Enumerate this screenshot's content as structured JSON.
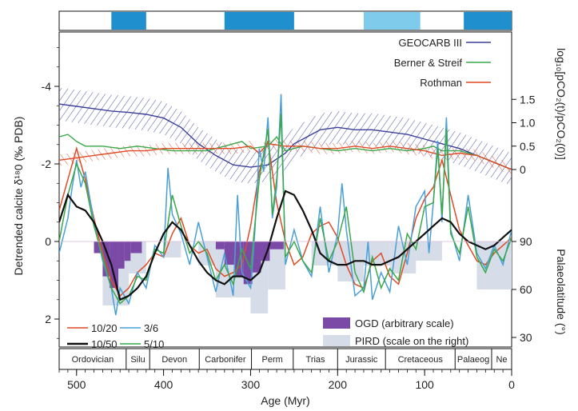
{
  "chart_data": {
    "type": "line",
    "x": {
      "label": "Age (Myr)",
      "range": [
        520,
        0
      ],
      "ticks": [
        500,
        400,
        300,
        200,
        100,
        0
      ]
    },
    "y_left": {
      "label": "Detrended calcite δ¹⁸0 (‰ PDB)",
      "range": [
        3,
        -5.5
      ],
      "ticks": [
        2,
        0,
        -2,
        -4
      ],
      "inverted": true
    },
    "y_right_top": {
      "label": "log₁₀[pCO₂(t)/pCO₂(0)]",
      "ticks": [
        1.5,
        1.0,
        0.5,
        0
      ]
    },
    "y_right_bottom": {
      "label": "Palaeolatitude (°)",
      "ticks": [
        90,
        60,
        30
      ]
    },
    "icehouse_bar": [
      {
        "start": 460,
        "end": 420,
        "color": "#1f8fce"
      },
      {
        "start": 330,
        "end": 250,
        "color": "#1f8fce"
      },
      {
        "start": 170,
        "end": 105,
        "color": "#7fcbeb"
      },
      {
        "start": 55,
        "end": 0,
        "color": "#1f8fce"
      }
    ],
    "periods": [
      {
        "name": "Ordovician",
        "start": 520,
        "end": 443
      },
      {
        "name": "Silu",
        "start": 443,
        "end": 416
      },
      {
        "name": "Devon",
        "start": 416,
        "end": 359
      },
      {
        "name": "Carbonifer",
        "start": 359,
        "end": 299
      },
      {
        "name": "Perm",
        "start": 299,
        "end": 251
      },
      {
        "name": "Trias",
        "start": 251,
        "end": 200
      },
      {
        "name": "Jurassic",
        "start": 200,
        "end": 145
      },
      {
        "name": "Cretaceous",
        "start": 145,
        "end": 65
      },
      {
        "name": "Palaeog",
        "start": 65,
        "end": 23
      },
      {
        "name": "Ne",
        "start": 23,
        "end": 0
      }
    ],
    "co2_series": [
      {
        "name": "GEOCARB III",
        "color": "#3b3f9a",
        "x": [
          520,
          500,
          480,
          460,
          440,
          420,
          400,
          380,
          360,
          340,
          320,
          300,
          280,
          260,
          250,
          240,
          230,
          220,
          200,
          180,
          160,
          140,
          120,
          100,
          80,
          60,
          40,
          20,
          0
        ],
        "y": [
          1.4,
          1.35,
          1.3,
          1.25,
          1.22,
          1.18,
          1.1,
          0.9,
          0.55,
          0.3,
          0.1,
          0.05,
          0.1,
          0.35,
          0.55,
          0.65,
          0.75,
          0.85,
          0.9,
          0.85,
          0.85,
          0.8,
          0.75,
          0.65,
          0.55,
          0.45,
          0.3,
          0.15,
          0
        ]
      },
      {
        "name": "Berner & Streif",
        "color": "#3aa84a",
        "x": [
          520,
          510,
          500,
          490,
          470,
          450,
          430,
          410,
          390,
          370,
          350,
          330,
          310,
          300,
          280,
          270,
          260,
          250,
          240,
          220,
          200,
          180,
          160,
          140,
          120,
          100,
          90,
          80,
          60,
          40,
          20,
          0
        ],
        "y": [
          0.7,
          0.75,
          0.6,
          0.5,
          0.5,
          0.45,
          0.5,
          0.45,
          0.4,
          0.4,
          0.4,
          0.5,
          0.6,
          0.45,
          0.5,
          0.7,
          0.4,
          0.45,
          0.5,
          0.45,
          0.4,
          0.45,
          0.4,
          0.45,
          0.4,
          0.45,
          0.5,
          0.4,
          0.4,
          0.3,
          0.15,
          0
        ]
      },
      {
        "name": "Rothman",
        "color": "#e04a24",
        "x": [
          520,
          500,
          480,
          460,
          440,
          420,
          400,
          380,
          360,
          340,
          320,
          300,
          290,
          280,
          260,
          240,
          220,
          200,
          180,
          160,
          140,
          120,
          100,
          80,
          60,
          40,
          20,
          0
        ],
        "y": [
          0.2,
          0.25,
          0.3,
          0.35,
          0.4,
          0.4,
          0.45,
          0.45,
          0.45,
          0.45,
          0.45,
          0.5,
          0.35,
          0.55,
          0.5,
          0.5,
          0.45,
          0.45,
          0.5,
          0.45,
          0.5,
          0.45,
          0.4,
          0.3,
          0.35,
          0.3,
          0.15,
          0
        ]
      }
    ],
    "d18o_series": [
      {
        "name": "10/20",
        "color": "#e04a24",
        "x": [
          520,
          510,
          500,
          490,
          480,
          470,
          460,
          450,
          440,
          430,
          420,
          410,
          400,
          390,
          380,
          370,
          360,
          350,
          340,
          330,
          320,
          310,
          300,
          290,
          280,
          270,
          260,
          250,
          240,
          230,
          220,
          210,
          200,
          190,
          180,
          170,
          160,
          150,
          140,
          130,
          120,
          110,
          100,
          90,
          80,
          70,
          60,
          50,
          40,
          30,
          20,
          10,
          0
        ],
        "y": [
          -0.8,
          -1.6,
          -2.4,
          -1.6,
          -0.6,
          0.3,
          1.0,
          1.4,
          1.2,
          0.8,
          0.6,
          0.3,
          0.4,
          -0.2,
          -0.6,
          0.1,
          0.3,
          0.2,
          0.7,
          0.9,
          0.8,
          0.6,
          -0.4,
          -1.8,
          -2.6,
          -1.0,
          0.0,
          0.6,
          0.4,
          -0.2,
          -0.4,
          -0.5,
          -0.1,
          0.6,
          1.1,
          1.2,
          0.5,
          0.3,
          0.9,
          1.1,
          0.3,
          -0.6,
          -1.1,
          -1.4,
          -2.1,
          -1.2,
          -0.3,
          0.1,
          0.5,
          0.6,
          0.3,
          0.1,
          -0.1
        ]
      },
      {
        "name": "3/6",
        "color": "#4a9fd6",
        "x": [
          520,
          510,
          505,
          500,
          495,
          490,
          480,
          470,
          460,
          455,
          450,
          440,
          430,
          420,
          410,
          400,
          395,
          390,
          380,
          370,
          360,
          350,
          340,
          330,
          320,
          315,
          310,
          300,
          295,
          290,
          285,
          280,
          275,
          270,
          265,
          260,
          250,
          240,
          230,
          220,
          210,
          200,
          195,
          190,
          180,
          170,
          165,
          160,
          150,
          140,
          130,
          120,
          110,
          100,
          95,
          90,
          85,
          80,
          75,
          70,
          60,
          50,
          40,
          30,
          20,
          10,
          0
        ],
        "y": [
          0.3,
          -0.6,
          -1.4,
          -2.1,
          -1.4,
          -1.8,
          -0.5,
          0.5,
          1.2,
          1.9,
          1.2,
          1.6,
          0.8,
          1.2,
          0.1,
          0.4,
          -1.9,
          -0.7,
          -0.2,
          0.6,
          -0.5,
          0.4,
          1.3,
          0.3,
          1.4,
          -1.2,
          0.8,
          1.2,
          -0.3,
          -2.4,
          -1.8,
          -3.2,
          -0.6,
          -1.4,
          -3.8,
          0.6,
          -0.3,
          0.5,
          0.9,
          -0.9,
          0.8,
          -0.2,
          -1.5,
          -0.3,
          1.4,
          1.2,
          0.0,
          1.5,
          0.8,
          1.3,
          -0.4,
          0.6,
          -0.9,
          -1.3,
          0.3,
          -1.0,
          -2.6,
          -0.5,
          -3.2,
          -0.3,
          0.5,
          -1.2,
          0.3,
          0.7,
          0.1,
          0.6,
          -0.3
        ]
      },
      {
        "name": "5/10",
        "color": "#3aa84a",
        "x": [
          520,
          510,
          500,
          490,
          480,
          470,
          460,
          450,
          440,
          430,
          420,
          410,
          400,
          390,
          380,
          370,
          360,
          350,
          340,
          330,
          320,
          310,
          300,
          290,
          280,
          275,
          270,
          265,
          260,
          250,
          240,
          230,
          220,
          210,
          200,
          190,
          180,
          170,
          160,
          150,
          140,
          130,
          120,
          110,
          100,
          90,
          85,
          80,
          75,
          70,
          60,
          50,
          40,
          30,
          20,
          10,
          0
        ],
        "y": [
          0.0,
          -1.2,
          -2.0,
          -1.5,
          -0.4,
          0.4,
          1.2,
          1.6,
          1.4,
          0.9,
          1.0,
          0.2,
          0.3,
          -1.2,
          -0.4,
          0.3,
          0.0,
          0.3,
          1.0,
          0.6,
          1.1,
          0.2,
          0.7,
          -1.6,
          -2.9,
          -0.7,
          -1.6,
          -3.3,
          0.4,
          0.0,
          0.5,
          0.8,
          -0.6,
          0.5,
          0.0,
          -0.9,
          0.8,
          1.3,
          0.4,
          1.2,
          0.7,
          1.0,
          -0.2,
          0.2,
          -0.9,
          -1.0,
          -2.4,
          -0.7,
          -2.9,
          -0.2,
          0.3,
          -0.9,
          0.4,
          0.8,
          0.2,
          0.5,
          -0.1
        ]
      },
      {
        "name": "10/50",
        "color": "#111111",
        "x": [
          520,
          510,
          500,
          490,
          480,
          470,
          460,
          450,
          440,
          430,
          420,
          410,
          400,
          390,
          380,
          370,
          360,
          350,
          340,
          330,
          320,
          310,
          300,
          290,
          280,
          270,
          260,
          250,
          240,
          230,
          220,
          210,
          200,
          190,
          180,
          170,
          160,
          150,
          140,
          130,
          120,
          110,
          100,
          90,
          80,
          70,
          60,
          50,
          40,
          30,
          20,
          10,
          0
        ],
        "y": [
          -0.5,
          -1.2,
          -0.9,
          -0.8,
          -0.5,
          0.0,
          0.6,
          1.5,
          1.4,
          1.2,
          0.9,
          0.3,
          -0.2,
          -0.5,
          -0.3,
          0.1,
          0.5,
          0.8,
          1.0,
          1.1,
          0.9,
          0.9,
          1.0,
          0.8,
          0.2,
          -0.6,
          -1.3,
          -1.2,
          -0.8,
          -0.3,
          0.3,
          0.5,
          0.6,
          0.6,
          0.5,
          0.5,
          0.6,
          0.6,
          0.5,
          0.4,
          0.2,
          0.0,
          -0.2,
          -0.4,
          -0.6,
          -0.5,
          -0.2,
          0.0,
          0.1,
          0.2,
          0.1,
          -0.1,
          -0.3
        ]
      }
    ],
    "ogd_blocks": [
      {
        "x0": 480,
        "x1": 470,
        "depth": 0.3
      },
      {
        "x0": 470,
        "x1": 462,
        "depth": 0.9
      },
      {
        "x0": 462,
        "x1": 452,
        "depth": 1.2
      },
      {
        "x0": 452,
        "x1": 445,
        "depth": 0.7
      },
      {
        "x0": 445,
        "x1": 438,
        "depth": 0.5
      },
      {
        "x0": 438,
        "x1": 425,
        "depth": 0.3
      },
      {
        "x0": 340,
        "x1": 330,
        "depth": 0.2
      },
      {
        "x0": 330,
        "x1": 318,
        "depth": 0.6
      },
      {
        "x0": 318,
        "x1": 308,
        "depth": 0.9
      },
      {
        "x0": 308,
        "x1": 298,
        "depth": 1.1
      },
      {
        "x0": 298,
        "x1": 288,
        "depth": 0.8
      },
      {
        "x0": 288,
        "x1": 278,
        "depth": 0.5
      },
      {
        "x0": 278,
        "x1": 262,
        "depth": 0.2
      }
    ],
    "pird_blocks": [
      {
        "x0": 470,
        "x1": 440,
        "lat": 50
      },
      {
        "x0": 440,
        "x1": 420,
        "lat": 70
      },
      {
        "x0": 400,
        "x1": 380,
        "lat": 80
      },
      {
        "x0": 360,
        "x1": 340,
        "lat": 75
      },
      {
        "x0": 340,
        "x1": 320,
        "lat": 55
      },
      {
        "x0": 320,
        "x1": 300,
        "lat": 55
      },
      {
        "x0": 300,
        "x1": 280,
        "lat": 45
      },
      {
        "x0": 280,
        "x1": 260,
        "lat": 60
      },
      {
        "x0": 230,
        "x1": 200,
        "lat": 75
      },
      {
        "x0": 200,
        "x1": 170,
        "lat": 65
      },
      {
        "x0": 170,
        "x1": 140,
        "lat": 75
      },
      {
        "x0": 140,
        "x1": 110,
        "lat": 70
      },
      {
        "x0": 110,
        "x1": 80,
        "lat": 78
      },
      {
        "x0": 40,
        "x1": 0,
        "lat": 60
      }
    ],
    "legend_co2": [
      "GEOCARB III",
      "Berner & Streif",
      "Rothman"
    ],
    "legend_filters": [
      "10/20",
      "3/6",
      "10/50",
      "5/10"
    ],
    "legend_fills": [
      {
        "label": "OGD (arbitrary scale)",
        "color": "#7b4aa6"
      },
      {
        "label": "PIRD (scale on the right)",
        "color": "#d6dde8"
      }
    ]
  }
}
